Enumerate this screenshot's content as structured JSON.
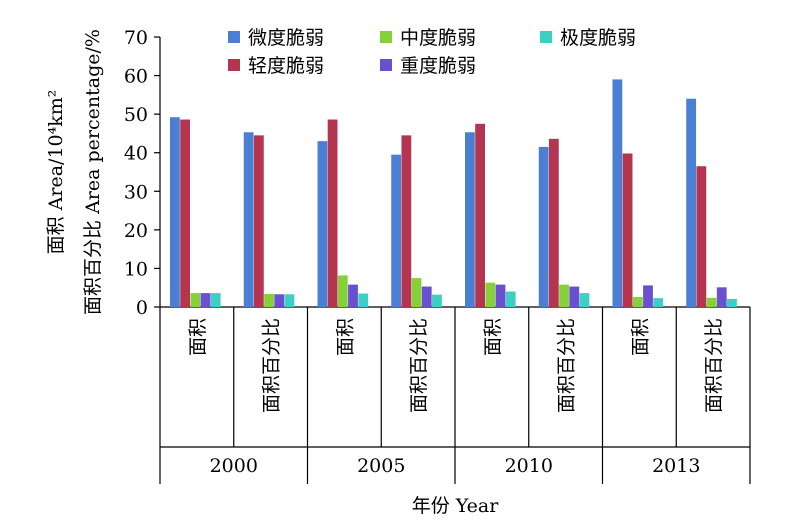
{
  "chart_data": {
    "type": "bar",
    "title": "",
    "ylabel_line1": "面积 Area/10⁴km²",
    "ylabel_line2": "面积百分比 Area percentage/%",
    "xlabel": "年份 Year",
    "ylim": [
      0,
      70
    ],
    "yticks": [
      0,
      10,
      20,
      30,
      40,
      50,
      60,
      70
    ],
    "groups": [
      {
        "year": "2000",
        "categories": [
          "面积",
          "面积百分比"
        ]
      },
      {
        "year": "2005",
        "categories": [
          "面积",
          "面积百分比"
        ]
      },
      {
        "year": "2010",
        "categories": [
          "面积",
          "面积百分比"
        ]
      },
      {
        "year": "2013",
        "categories": [
          "面积",
          "面积百分比"
        ]
      }
    ],
    "categories": [
      "2000 面积",
      "2000 面积百分比",
      "2005 面积",
      "2005 面积百分比",
      "2010 面积",
      "2010 面积百分比",
      "2013 面积",
      "2013 面积百分比"
    ],
    "legend_position": "top",
    "series": [
      {
        "name": "微度脆弱",
        "color": "#4a7fd4",
        "values": [
          49.2,
          45.3,
          43.0,
          39.5,
          45.3,
          41.5,
          59.0,
          54.0
        ]
      },
      {
        "name": "轻度脆弱",
        "color": "#b5344f",
        "values": [
          48.6,
          44.5,
          48.6,
          44.5,
          47.5,
          43.6,
          39.8,
          36.5
        ]
      },
      {
        "name": "中度脆弱",
        "color": "#86d13a",
        "values": [
          3.6,
          3.4,
          8.2,
          7.5,
          6.3,
          5.8,
          2.6,
          2.4
        ]
      },
      {
        "name": "重度脆弱",
        "color": "#6a4fd0",
        "values": [
          3.6,
          3.3,
          5.8,
          5.3,
          5.8,
          5.3,
          5.6,
          5.1
        ]
      },
      {
        "name": "极度脆弱",
        "color": "#3ecfc4",
        "values": [
          3.6,
          3.3,
          3.5,
          3.2,
          4.0,
          3.6,
          2.3,
          2.1
        ]
      }
    ]
  }
}
